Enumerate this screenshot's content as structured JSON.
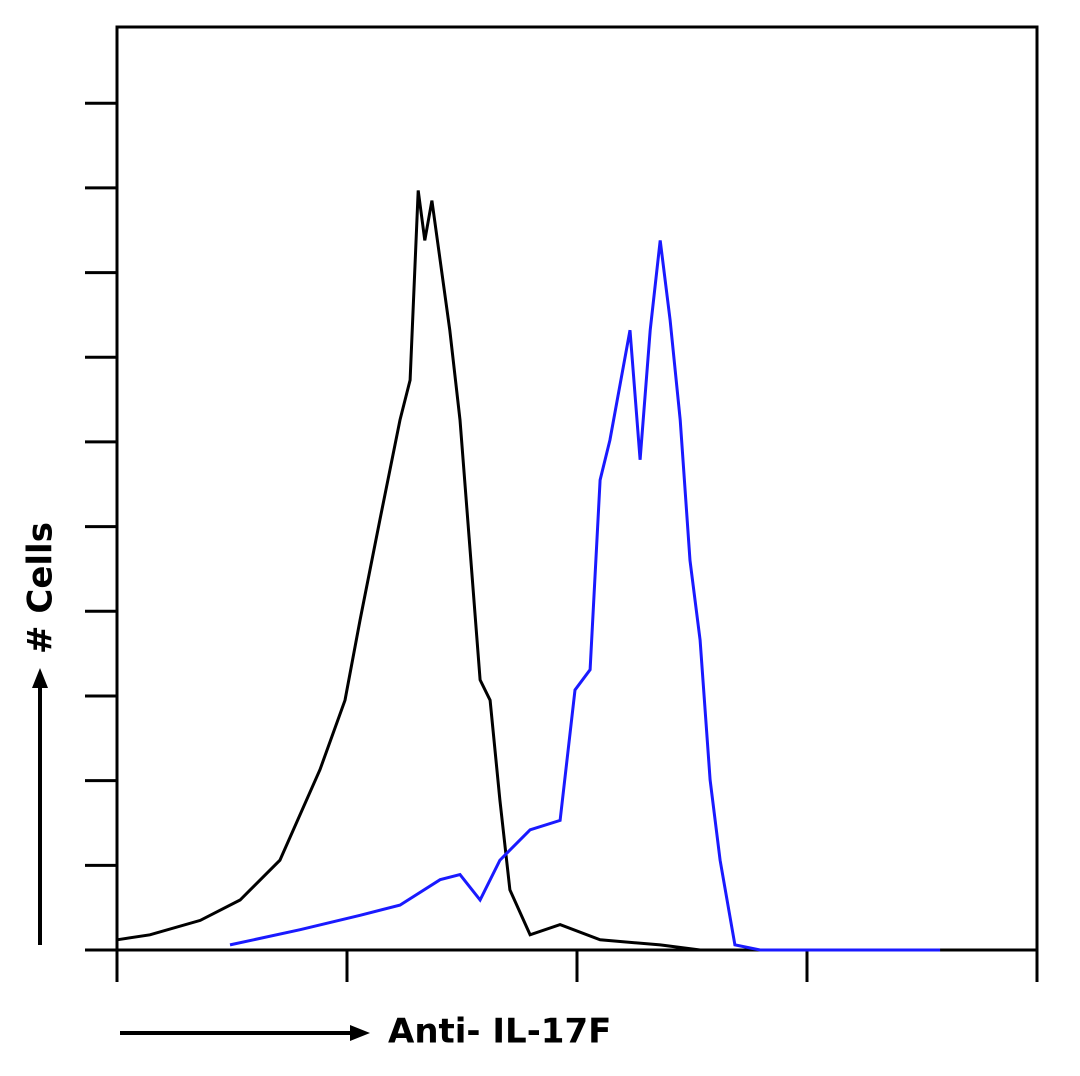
{
  "chart_data": {
    "type": "line",
    "x_label": "Anti- IL-17F",
    "y_label": "# Cells",
    "x_log": true,
    "xlim": [
      1,
      10000
    ],
    "xticks": [
      1,
      10,
      100,
      1000,
      10000
    ],
    "ylim": [
      0,
      10.9
    ],
    "yticks": [
      0,
      1,
      2,
      3,
      4,
      5,
      6,
      7,
      8,
      9,
      10
    ],
    "series": [
      {
        "name": null,
        "color": "#000000",
        "x": [
          1,
          1.39,
          2.3,
          3.43,
          5.11,
          7.63,
          9.8,
          11.4,
          13.9,
          17.0,
          18.8,
          20.4,
          21.8,
          23.4,
          25.4,
          28.0,
          31.0,
          34.3,
          37.9,
          41.9,
          46.2,
          51.1,
          62.5,
          84.4,
          126,
          230,
          343
        ],
        "values": [
          0.12,
          0.18,
          0.35,
          0.59,
          1.06,
          2.13,
          2.95,
          3.9,
          5.08,
          6.26,
          6.73,
          8.97,
          8.38,
          8.85,
          8.15,
          7.32,
          6.26,
          4.72,
          3.19,
          2.95,
          1.77,
          0.71,
          0.18,
          0.3,
          0.12,
          0.06,
          0
        ]
      },
      {
        "name": null,
        "color": "#1a1aff",
        "x": [
          3.1,
          6.25,
          11.4,
          17.0,
          25.4,
          31.0,
          37.9,
          46.2,
          62.5,
          84.4,
          98.0,
          114,
          126,
          139,
          170,
          188,
          208,
          230,
          254,
          281,
          310,
          343,
          379,
          419,
          486,
          625,
          3790
        ],
        "values": [
          0.06,
          0.24,
          0.41,
          0.53,
          0.83,
          0.89,
          0.59,
          1.06,
          1.42,
          1.53,
          3.07,
          3.31,
          5.55,
          6.02,
          7.32,
          5.79,
          7.32,
          8.38,
          7.44,
          6.26,
          4.6,
          3.66,
          2.01,
          1.06,
          0.06,
          0,
          0
        ]
      }
    ]
  }
}
